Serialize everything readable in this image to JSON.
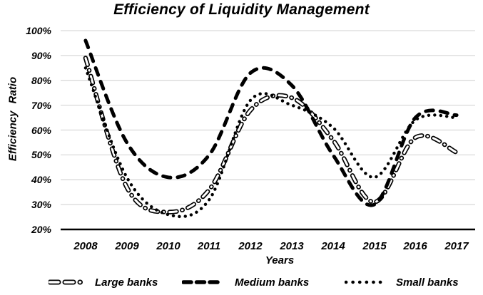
{
  "chart_data": {
    "type": "line",
    "title": "Efficiency of Liquidity Management",
    "xlabel": "Years",
    "ylabel": "Efficiency Ratio",
    "categories": [
      "2008",
      "2009",
      "2010",
      "2011",
      "2012",
      "2013",
      "2014",
      "2015",
      "2016",
      "2017"
    ],
    "series": [
      {
        "name": "Large banks",
        "style": "hollow-dash",
        "unit": "%",
        "values": [
          89,
          37,
          27,
          36,
          68,
          73,
          56,
          31,
          57,
          51
        ]
      },
      {
        "name": "Medium banks",
        "style": "solid-dash",
        "unit": "%",
        "values": [
          96,
          55,
          41,
          50,
          83,
          78,
          50,
          30,
          65,
          66
        ]
      },
      {
        "name": "Small banks",
        "style": "dotted",
        "unit": "%",
        "values": [
          85,
          41,
          26,
          32,
          72,
          70,
          61,
          41,
          64,
          65
        ]
      }
    ],
    "ylim": [
      20,
      100
    ],
    "y_ticks": [
      "20%",
      "30%",
      "40%",
      "50%",
      "60%",
      "70%",
      "80%",
      "90%",
      "100%"
    ],
    "grid": "horizontal-only",
    "legend_position": "bottom",
    "line_color": "#000000",
    "background_color": "#ffffff",
    "gridline_color": "#d9d9d9",
    "smoothed": true
  }
}
